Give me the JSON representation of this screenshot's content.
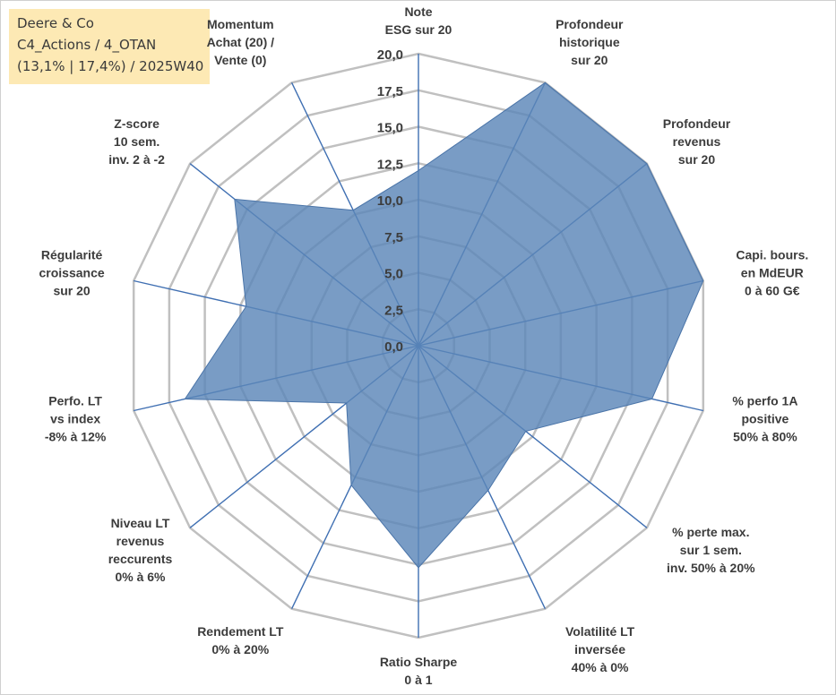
{
  "info_box": {
    "line1": "Deere & Co",
    "line2": "C4_Actions / 4_OTAN",
    "line3": "(13,1% | 17,4%) / 2025W40"
  },
  "colors": {
    "series_fill": "#5b86b8",
    "series_stroke": "#4a74a8",
    "grid": "#c0c0c0",
    "spoke": "#3f6fb2",
    "info_bg": "#fde9b4"
  },
  "chart_data": {
    "type": "radar",
    "title": "",
    "rmin": 0,
    "rmax": 20,
    "ticks": [
      "0,0",
      "2,5",
      "5,0",
      "7,5",
      "10,0",
      "12,5",
      "15,0",
      "17,5",
      "20,0"
    ],
    "tick_values": [
      0,
      2.5,
      5,
      7.5,
      10,
      12.5,
      15,
      17.5,
      20
    ],
    "categories": [
      [
        "Note",
        "ESG sur 20"
      ],
      [
        "Profondeur",
        "historique",
        "sur 20"
      ],
      [
        "Profondeur",
        "revenus",
        "sur 20"
      ],
      [
        "Capi. bours.",
        "en MdEUR",
        "0 à 60 G€"
      ],
      [
        "% perfo 1A",
        "positive",
        "50% à 80%"
      ],
      [
        "% perte max.",
        "sur 1 sem.",
        "inv. 50% à 20%"
      ],
      [
        "Volatilité LT",
        "inversée",
        "40% à 0%"
      ],
      [
        "Ratio Sharpe",
        "0 à 1"
      ],
      [
        "Rendement LT",
        "0% à 20%"
      ],
      [
        "Niveau LT",
        "revenus",
        "reccurents",
        "0% à 6%"
      ],
      [
        "Perfo. LT",
        "vs index",
        "-8% à 12%"
      ],
      [
        "Régularité",
        "croissance",
        "sur 20"
      ],
      [
        "Z-score",
        "10 sem.",
        "inv. 2 à -2"
      ],
      [
        "Momentum",
        "Achat (20) /",
        "Vente (0)"
      ]
    ],
    "series": [
      {
        "name": "Deere & Co",
        "values": [
          12.0,
          20.0,
          20.0,
          20.0,
          16.4,
          9.4,
          11.0,
          15.2,
          10.6,
          6.3,
          16.4,
          12.1,
          16.1,
          10.3
        ]
      }
    ]
  }
}
